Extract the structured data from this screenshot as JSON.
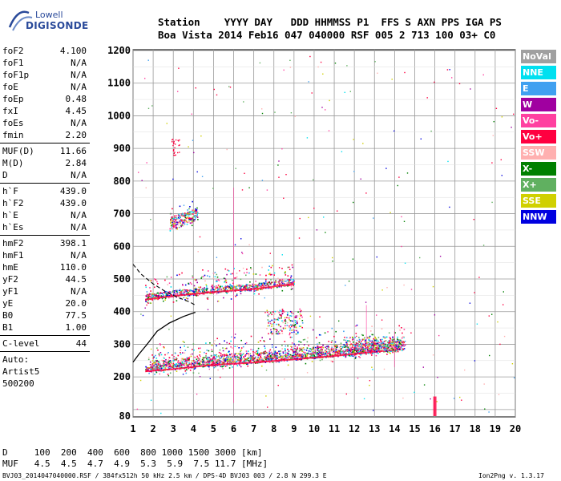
{
  "logo": {
    "line1": "Lowell",
    "line2": "DIGISONDE"
  },
  "header": {
    "labels_row": "Station    YYYY DAY   DDD HHMMSS P1  FFS S AXN PPS IGA PS",
    "values_row": "Boa Vista 2014 Feb16 047 040000 RSF 005 2 713 100 03+ C0"
  },
  "params": {
    "group1": [
      {
        "name": "foF2",
        "value": "4.100"
      },
      {
        "name": "foF1",
        "value": "N/A"
      },
      {
        "name": "foF1p",
        "value": "N/A"
      },
      {
        "name": "foE",
        "value": "N/A"
      },
      {
        "name": "foEp",
        "value": "0.48"
      },
      {
        "name": "fxI",
        "value": "4.45"
      },
      {
        "name": "foEs",
        "value": "N/A"
      },
      {
        "name": "fmin",
        "value": "2.20"
      }
    ],
    "group2": [
      {
        "name": "MUF(D)",
        "value": "11.66"
      },
      {
        "name": "M(D)",
        "value": "2.84"
      },
      {
        "name": "D",
        "value": "N/A"
      }
    ],
    "group3": [
      {
        "name": "h`F",
        "value": "439.0"
      },
      {
        "name": "h`F2",
        "value": "439.0"
      },
      {
        "name": "h`E",
        "value": "N/A"
      },
      {
        "name": "h`Es",
        "value": "N/A"
      }
    ],
    "group4": [
      {
        "name": "hmF2",
        "value": "398.1"
      },
      {
        "name": "hmF1",
        "value": "N/A"
      },
      {
        "name": "hmE",
        "value": "110.0"
      },
      {
        "name": "yF2",
        "value": "44.5"
      },
      {
        "name": "yF1",
        "value": "N/A"
      },
      {
        "name": "yE",
        "value": "20.0"
      },
      {
        "name": "B0",
        "value": "77.5"
      },
      {
        "name": "B1",
        "value": "1.00"
      }
    ],
    "clevel": {
      "name": "C-level",
      "value": "44"
    },
    "auto_lines": [
      "Auto:",
      "Artist5",
      "500200"
    ]
  },
  "legend": [
    {
      "label": "NoVal",
      "color": "#a0a0a0"
    },
    {
      "label": "NNE",
      "color": "#00e0f0"
    },
    {
      "label": "E",
      "color": "#40a0f0"
    },
    {
      "label": "W",
      "color": "#a000a0"
    },
    {
      "label": "Vo-",
      "color": "#ff40a0"
    },
    {
      "label": "Vo+",
      "color": "#ff0040"
    },
    {
      "label": "SSW",
      "color": "#ffb0b0"
    },
    {
      "label": "X-",
      "color": "#008000"
    },
    {
      "label": "X+",
      "color": "#60b060"
    },
    {
      "label": "SSE",
      "color": "#d0d000"
    },
    {
      "label": "NNW",
      "color": "#0000e0"
    }
  ],
  "bottom_table": {
    "d_row": "D     100  200  400  600  800 1000 1500 3000 [km]",
    "muf_row": "MUF   4.5  4.5  4.7  4.9  5.3  5.9  7.5 11.7 [MHz]"
  },
  "footer": {
    "left": "BVJ03_2014047040000.RSF / 384fx512h 50 kHz 2.5 km / DPS-4D BVJ03 003 / 2.8 N 299.3 E",
    "right": "Ion2Png v. 1.3.17"
  },
  "chart_data": {
    "type": "scatter",
    "title": "",
    "xlabel": "",
    "ylabel": "",
    "x_ticks": [
      1,
      2,
      3,
      4,
      5,
      6,
      7,
      8,
      9,
      10,
      11,
      12,
      13,
      14,
      15,
      16,
      17,
      18,
      19,
      20
    ],
    "y_ticks": [
      80,
      100,
      200,
      300,
      400,
      500,
      600,
      700,
      800,
      900,
      1000,
      1100,
      1200
    ],
    "xlim": [
      1,
      20
    ],
    "ylim": [
      80,
      1200
    ],
    "grid": true,
    "series": [
      {
        "type": "traces",
        "color_note": "multicolor",
        "o_trace": [
          [
            1.6,
            225
          ],
          [
            3,
            232
          ],
          [
            5,
            245
          ],
          [
            7,
            252
          ],
          [
            9,
            262
          ],
          [
            11,
            272
          ],
          [
            13,
            285
          ],
          [
            14.3,
            292
          ]
        ],
        "x_trace": [
          [
            1.8,
            240
          ],
          [
            3,
            246
          ],
          [
            5,
            258
          ],
          [
            7,
            266
          ],
          [
            9,
            278
          ],
          [
            11,
            288
          ],
          [
            13,
            298
          ],
          [
            14.6,
            305
          ]
        ],
        "second_hop": [
          [
            1.6,
            445
          ],
          [
            3,
            456
          ],
          [
            5,
            468
          ],
          [
            7,
            477
          ],
          [
            9,
            493
          ]
        ],
        "third_hop": [
          [
            2.8,
            670
          ],
          [
            4.2,
            700
          ]
        ],
        "fourth_hop_faint": [
          [
            2.8,
            905
          ]
        ]
      },
      {
        "name": "profile",
        "color": "#000000",
        "style": "solid",
        "points": [
          [
            1,
            245
          ],
          [
            1.3,
            270
          ],
          [
            1.7,
            300
          ],
          [
            2.2,
            340
          ],
          [
            2.8,
            365
          ],
          [
            3.5,
            385
          ],
          [
            4.1,
            398
          ]
        ]
      },
      {
        "name": "model",
        "color": "#000000",
        "style": "dashed",
        "points": [
          [
            1,
            545
          ],
          [
            1.4,
            515
          ],
          [
            2,
            485
          ],
          [
            2.6,
            462
          ],
          [
            3.2,
            444
          ],
          [
            3.8,
            430
          ],
          [
            4.1,
            420
          ]
        ]
      }
    ]
  }
}
